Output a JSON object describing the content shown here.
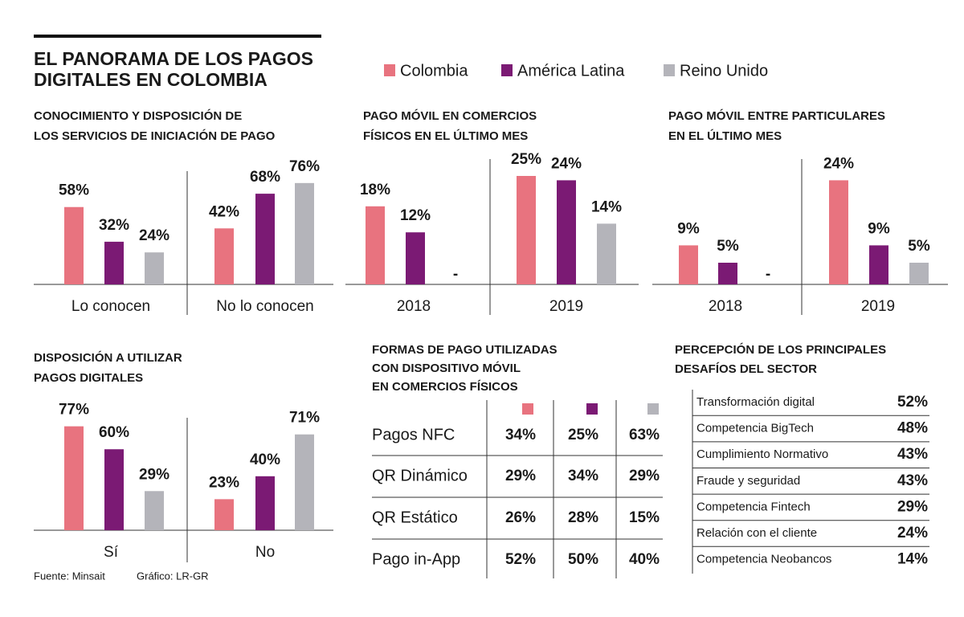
{
  "header": {
    "title_lines": [
      "EL PANORAMA DE LOS PAGOS",
      "DIGITALES EN COLOMBIA"
    ]
  },
  "legend": [
    {
      "name": "Colombia",
      "color": "#e8737f"
    },
    {
      "name": "América Latina",
      "color": "#7b1a74"
    },
    {
      "name": "Reino Unido",
      "color": "#b4b4ba"
    }
  ],
  "chart_data": [
    {
      "type": "bar",
      "title_lines": [
        "CONOCIMIENTO Y DISPOSICIÓN DE",
        "LOS SERVICIOS DE INICIACIÓN DE PAGO"
      ],
      "categories": [
        "Lo conocen",
        "No lo conocen"
      ],
      "series": [
        {
          "values": [
            58,
            42
          ],
          "value_labels": [
            "58%",
            "42%"
          ]
        },
        {
          "values": [
            32,
            68
          ],
          "value_labels": [
            "32%",
            "68%"
          ]
        },
        {
          "values": [
            24,
            76
          ],
          "value_labels": [
            "24%",
            "76%"
          ]
        }
      ]
    },
    {
      "type": "bar",
      "title_lines": [
        "PAGO MÓVIL EN COMERCIOS",
        "FÍSICOS EN EL ÚLTIMO MES"
      ],
      "categories": [
        "2018",
        "2019"
      ],
      "series": [
        {
          "values": [
            18,
            25
          ],
          "value_labels": [
            "18%",
            "25%"
          ]
        },
        {
          "values": [
            12,
            24
          ],
          "value_labels": [
            "12%",
            "24%"
          ]
        },
        {
          "values": [
            null,
            14
          ],
          "value_labels": [
            "-",
            "14%"
          ]
        }
      ]
    },
    {
      "type": "bar",
      "title_lines": [
        "PAGO MÓVIL ENTRE PARTICULARES",
        "EN EL ÚLTIMO MES"
      ],
      "categories": [
        "2018",
        "2019"
      ],
      "series": [
        {
          "values": [
            9,
            24
          ],
          "value_labels": [
            "9%",
            "24%"
          ]
        },
        {
          "values": [
            5,
            9
          ],
          "value_labels": [
            "5%",
            "9%"
          ]
        },
        {
          "values": [
            null,
            5
          ],
          "value_labels": [
            "-",
            "5%"
          ]
        }
      ]
    },
    {
      "type": "bar",
      "title_lines": [
        "DISPOSICIÓN A UTILIZAR",
        "PAGOS DIGITALES"
      ],
      "categories": [
        "Sí",
        "No"
      ],
      "series": [
        {
          "values": [
            77,
            23
          ],
          "value_labels": [
            "77%",
            "23%"
          ]
        },
        {
          "values": [
            60,
            40
          ],
          "value_labels": [
            "60%",
            "40%"
          ]
        },
        {
          "values": [
            29,
            71
          ],
          "value_labels": [
            "29%",
            "71%"
          ]
        }
      ]
    }
  ],
  "payment_table": {
    "title_lines": [
      "FORMAS DE PAGO UTILIZADAS",
      "CON DISPOSITIVO MÓVIL",
      "EN COMERCIOS FÍSICOS"
    ],
    "rows": [
      [
        "Pagos NFC",
        "34%",
        "25%",
        "63%"
      ],
      [
        "QR Dinámico",
        "29%",
        "34%",
        "29%"
      ],
      [
        "QR Estático",
        "26%",
        "28%",
        "15%"
      ],
      [
        "Pago in-App",
        "52%",
        "50%",
        "40%"
      ]
    ]
  },
  "challenges_table": {
    "title_lines": [
      "PERCEPCIÓN DE LOS PRINCIPALES",
      "DESAFÍOS DEL SECTOR"
    ],
    "rows": [
      [
        "Transformación digital",
        "52%"
      ],
      [
        "Competencia BigTech",
        "48%"
      ],
      [
        "Cumplimiento Normativo",
        "43%"
      ],
      [
        "Fraude y seguridad",
        "43%"
      ],
      [
        "Competencia Fintech",
        "29%"
      ],
      [
        "Relación con el cliente",
        "24%"
      ],
      [
        "Competencia Neobancos",
        "14%"
      ]
    ]
  },
  "footer": {
    "source": "Fuente: Minsait",
    "credit": "Gráfico: LR-GR"
  }
}
